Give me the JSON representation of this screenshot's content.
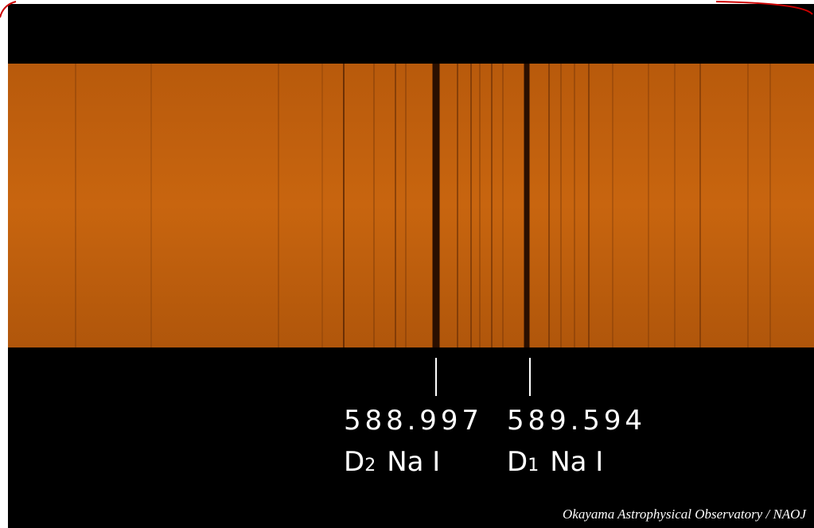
{
  "lines": [
    {
      "wavelength": "588.997",
      "letter": "D",
      "index": "2",
      "species": "Na I"
    },
    {
      "wavelength": "589.594",
      "letter": "D",
      "index": "1",
      "species": "Na I"
    }
  ],
  "credit": "Okayama Astrophysical Observatory / NAOJ"
}
